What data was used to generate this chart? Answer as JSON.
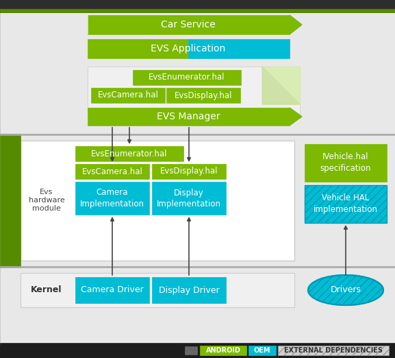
{
  "bg_top": "#2d2d2d",
  "bg_content": "#e8e8e8",
  "green_dark": "#558b00",
  "green_light": "#7cb900",
  "green_lighter": "#d6ecaa",
  "cyan": "#00bcd4",
  "white": "#ffffff",
  "gray_light": "#f0f0f0",
  "gray_med": "#cccccc",
  "legend_bg": "#1c1c1c",
  "car_service": "Car Service",
  "evs_app": "EVS Application",
  "evs_enum_top": "EvsEnumerator.hal",
  "evs_cam_top": "EvsCamera.hal",
  "evs_disp_top": "EvsDisplay.hal",
  "evs_manager": "EVS Manager",
  "evs_enum_bot": "EvsEnumerator.hal",
  "evs_cam_bot": "EvsCamera.hal",
  "evs_disp_bot": "EvsDisplay.hal",
  "cam_impl": "Camera\nImplementation",
  "disp_impl": "Display\nImplementation",
  "ivehicle": "IVehicle.hal\nspecification",
  "vehicle_hal": "Vehicle HAL\nimplementation",
  "cam_driver": "Camera Driver",
  "disp_driver": "Display Driver",
  "drivers": "Drivers",
  "evs_hw": "Evs\nhardware\nmodule",
  "kernel": "Kernel",
  "legend_android": "ANDROID",
  "legend_oem": "OEM",
  "legend_ext": "EXTERNAL DEPENDENCIES"
}
